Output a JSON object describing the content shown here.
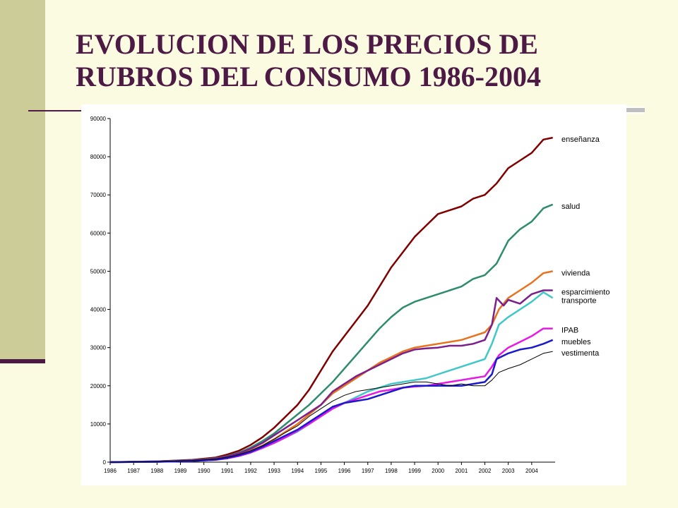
{
  "slide": {
    "title_line1": "EVOLUCION DE LOS PRECIOS DE",
    "title_line2": "RUBROS DEL CONSUMO 1986-2004",
    "accent_color": "#4D1A45",
    "sidebar_color": "#CCCC99",
    "background_color": "#FBFBE1"
  },
  "chart_data": {
    "type": "line",
    "title": "",
    "xlabel": "",
    "ylabel": "",
    "xlim": [
      1986,
      2005
    ],
    "ylim": [
      0,
      90000
    ],
    "y_ticks": [
      "0",
      "10000",
      "20000",
      "30000",
      "40000",
      "50000",
      "60000",
      "70000",
      "80000",
      "90000"
    ],
    "x_ticks": [
      "1986",
      "1987",
      "1988",
      "1989",
      "1990",
      "1991",
      "1992",
      "1993",
      "1994",
      "1995",
      "1996",
      "1997",
      "1998",
      "1999",
      "2000",
      "2001",
      "2002",
      "2003",
      "2004"
    ],
    "grid": false,
    "legend": "right (labels at line ends)",
    "series": [
      {
        "name": "enseñanza",
        "color": "#800000",
        "stroke": 2.5,
        "points": [
          [
            1986,
            0
          ],
          [
            1988,
            200
          ],
          [
            1989.5,
            600
          ],
          [
            1990.5,
            1200
          ],
          [
            1991,
            2000
          ],
          [
            1991.5,
            3000
          ],
          [
            1992,
            4500
          ],
          [
            1992.5,
            6500
          ],
          [
            1993,
            9000
          ],
          [
            1993.5,
            12000
          ],
          [
            1994,
            15000
          ],
          [
            1994.5,
            19000
          ],
          [
            1995,
            24000
          ],
          [
            1995.5,
            29000
          ],
          [
            1996,
            33000
          ],
          [
            1996.5,
            37000
          ],
          [
            1997,
            41000
          ],
          [
            1997.5,
            46000
          ],
          [
            1998,
            51000
          ],
          [
            1998.5,
            55000
          ],
          [
            1999,
            59000
          ],
          [
            1999.5,
            62000
          ],
          [
            2000,
            65000
          ],
          [
            2000.5,
            66000
          ],
          [
            2001,
            67000
          ],
          [
            2001.5,
            69000
          ],
          [
            2002,
            70000
          ],
          [
            2002.5,
            73000
          ],
          [
            2003,
            77000
          ],
          [
            2003.5,
            79000
          ],
          [
            2004,
            81000
          ],
          [
            2004.5,
            84500
          ],
          [
            2004.9,
            85000
          ]
        ]
      },
      {
        "name": "salud",
        "color": "#2E8B6E",
        "stroke": 2.5,
        "points": [
          [
            1986,
            0
          ],
          [
            1988,
            200
          ],
          [
            1989.5,
            500
          ],
          [
            1990.5,
            1000
          ],
          [
            1991,
            1600
          ],
          [
            1991.5,
            2500
          ],
          [
            1992,
            3800
          ],
          [
            1992.5,
            5500
          ],
          [
            1993,
            7500
          ],
          [
            1993.5,
            10000
          ],
          [
            1994,
            12500
          ],
          [
            1994.5,
            15000
          ],
          [
            1995,
            18000
          ],
          [
            1995.5,
            21000
          ],
          [
            1996,
            24500
          ],
          [
            1996.5,
            28000
          ],
          [
            1997,
            31500
          ],
          [
            1997.5,
            35000
          ],
          [
            1998,
            38000
          ],
          [
            1998.5,
            40500
          ],
          [
            1999,
            42000
          ],
          [
            1999.5,
            43000
          ],
          [
            2000,
            44000
          ],
          [
            2000.5,
            45000
          ],
          [
            2001,
            46000
          ],
          [
            2001.5,
            48000
          ],
          [
            2002,
            49000
          ],
          [
            2002.5,
            52000
          ],
          [
            2003,
            58000
          ],
          [
            2003.5,
            61000
          ],
          [
            2004,
            63000
          ],
          [
            2004.5,
            66500
          ],
          [
            2004.9,
            67500
          ]
        ]
      },
      {
        "name": "vivienda",
        "color": "#E8731E",
        "stroke": 2.5,
        "points": [
          [
            1986,
            0
          ],
          [
            1988,
            150
          ],
          [
            1989.5,
            400
          ],
          [
            1990.5,
            800
          ],
          [
            1991,
            1300
          ],
          [
            1991.5,
            2000
          ],
          [
            1992,
            3000
          ],
          [
            1992.5,
            4300
          ],
          [
            1993,
            6000
          ],
          [
            1993.5,
            8000
          ],
          [
            1994,
            10000
          ],
          [
            1994.5,
            12500
          ],
          [
            1995,
            15000
          ],
          [
            1995.5,
            18000
          ],
          [
            1996,
            20000
          ],
          [
            1996.5,
            22000
          ],
          [
            1997,
            24000
          ],
          [
            1997.5,
            26000
          ],
          [
            1998,
            27500
          ],
          [
            1998.5,
            29000
          ],
          [
            1999,
            30000
          ],
          [
            1999.5,
            30500
          ],
          [
            2000,
            31000
          ],
          [
            2000.5,
            31500
          ],
          [
            2001,
            32000
          ],
          [
            2001.5,
            33000
          ],
          [
            2002,
            34000
          ],
          [
            2002.3,
            36000
          ],
          [
            2002.6,
            40000
          ],
          [
            2003,
            43000
          ],
          [
            2003.5,
            45000
          ],
          [
            2004,
            47000
          ],
          [
            2004.5,
            49500
          ],
          [
            2004.9,
            50000
          ]
        ]
      },
      {
        "name": "esparcimiento",
        "color": "#7B1F8A",
        "stroke": 2.5,
        "points": [
          [
            1986,
            0
          ],
          [
            1988,
            150
          ],
          [
            1989.5,
            450
          ],
          [
            1990.5,
            900
          ],
          [
            1991,
            1500
          ],
          [
            1991.5,
            2300
          ],
          [
            1992,
            3500
          ],
          [
            1992.5,
            5000
          ],
          [
            1993,
            7000
          ],
          [
            1993.5,
            9000
          ],
          [
            1994,
            11000
          ],
          [
            1994.5,
            13000
          ],
          [
            1995,
            15000
          ],
          [
            1995.5,
            18500
          ],
          [
            1996,
            20500
          ],
          [
            1996.5,
            22500
          ],
          [
            1997,
            24000
          ],
          [
            1997.5,
            25500
          ],
          [
            1998,
            27000
          ],
          [
            1998.5,
            28500
          ],
          [
            1999,
            29500
          ],
          [
            1999.5,
            29800
          ],
          [
            2000,
            30000
          ],
          [
            2000.5,
            30500
          ],
          [
            2001,
            30500
          ],
          [
            2001.5,
            31000
          ],
          [
            2002,
            32000
          ],
          [
            2002.3,
            36000
          ],
          [
            2002.5,
            43000
          ],
          [
            2002.8,
            41000
          ],
          [
            2003,
            42500
          ],
          [
            2003.5,
            41500
          ],
          [
            2004,
            44000
          ],
          [
            2004.5,
            45000
          ],
          [
            2004.9,
            45000
          ]
        ]
      },
      {
        "name": "transporte",
        "color": "#40C8C8",
        "stroke": 2.5,
        "points": [
          [
            1986,
            0
          ],
          [
            1988,
            100
          ],
          [
            1989.5,
            300
          ],
          [
            1990.5,
            600
          ],
          [
            1991,
            1000
          ],
          [
            1991.5,
            1600
          ],
          [
            1992,
            2500
          ],
          [
            1992.5,
            3700
          ],
          [
            1993,
            5000
          ],
          [
            1993.5,
            6500
          ],
          [
            1994,
            8000
          ],
          [
            1994.5,
            10000
          ],
          [
            1995,
            12000
          ],
          [
            1995.5,
            14000
          ],
          [
            1996,
            15500
          ],
          [
            1996.5,
            17000
          ],
          [
            1997,
            18500
          ],
          [
            1997.5,
            19500
          ],
          [
            1998,
            20500
          ],
          [
            1998.5,
            21000
          ],
          [
            1999,
            21500
          ],
          [
            1999.5,
            22000
          ],
          [
            2000,
            23000
          ],
          [
            2000.5,
            24000
          ],
          [
            2001,
            25000
          ],
          [
            2001.5,
            26000
          ],
          [
            2002,
            27000
          ],
          [
            2002.3,
            31000
          ],
          [
            2002.6,
            36000
          ],
          [
            2003,
            38000
          ],
          [
            2003.5,
            40000
          ],
          [
            2004,
            42000
          ],
          [
            2004.5,
            44500
          ],
          [
            2004.9,
            43000
          ]
        ]
      },
      {
        "name": "IPAB",
        "color": "#E619E6",
        "stroke": 2.5,
        "points": [
          [
            1986,
            0
          ],
          [
            1988,
            100
          ],
          [
            1989.5,
            300
          ],
          [
            1990.5,
            600
          ],
          [
            1991,
            1000
          ],
          [
            1991.5,
            1600
          ],
          [
            1992,
            2500
          ],
          [
            1992.5,
            3700
          ],
          [
            1993,
            5000
          ],
          [
            1993.5,
            6500
          ],
          [
            1994,
            8200
          ],
          [
            1994.5,
            10000
          ],
          [
            1995,
            12000
          ],
          [
            1995.5,
            14000
          ],
          [
            1996,
            15500
          ],
          [
            1996.5,
            16500
          ],
          [
            1997,
            17500
          ],
          [
            1997.5,
            18500
          ],
          [
            1998,
            19000
          ],
          [
            1998.5,
            19500
          ],
          [
            1999,
            19800
          ],
          [
            1999.5,
            20000
          ],
          [
            2000,
            20500
          ],
          [
            2000.5,
            21000
          ],
          [
            2001,
            21500
          ],
          [
            2001.5,
            22000
          ],
          [
            2002,
            22500
          ],
          [
            2002.3,
            25000
          ],
          [
            2002.6,
            28000
          ],
          [
            2003,
            30000
          ],
          [
            2003.5,
            31500
          ],
          [
            2004,
            33000
          ],
          [
            2004.5,
            35000
          ],
          [
            2004.9,
            35000
          ]
        ]
      },
      {
        "name": "muebles",
        "color": "#1A1ACC",
        "stroke": 2.5,
        "points": [
          [
            1986,
            0
          ],
          [
            1988,
            100
          ],
          [
            1989.5,
            300
          ],
          [
            1990.5,
            650
          ],
          [
            1991,
            1100
          ],
          [
            1991.5,
            1800
          ],
          [
            1992,
            2700
          ],
          [
            1992.5,
            4000
          ],
          [
            1993,
            5500
          ],
          [
            1993.5,
            7000
          ],
          [
            1994,
            8500
          ],
          [
            1994.5,
            10500
          ],
          [
            1995,
            12500
          ],
          [
            1995.5,
            14500
          ],
          [
            1996,
            15500
          ],
          [
            1996.5,
            16000
          ],
          [
            1997,
            16500
          ],
          [
            1997.5,
            17500
          ],
          [
            1998,
            18500
          ],
          [
            1998.5,
            19500
          ],
          [
            1999,
            20000
          ],
          [
            1999.5,
            20000
          ],
          [
            2000,
            20000
          ],
          [
            2000.5,
            20000
          ],
          [
            2001,
            20000
          ],
          [
            2001.5,
            20500
          ],
          [
            2002,
            21000
          ],
          [
            2002.3,
            23000
          ],
          [
            2002.5,
            27000
          ],
          [
            2003,
            28500
          ],
          [
            2003.5,
            29500
          ],
          [
            2004,
            30000
          ],
          [
            2004.5,
            31000
          ],
          [
            2004.9,
            32000
          ]
        ]
      },
      {
        "name": "vestimenta",
        "color": "#000000",
        "stroke": 1,
        "points": [
          [
            1986,
            0
          ],
          [
            1988,
            150
          ],
          [
            1989.5,
            400
          ],
          [
            1990.5,
            800
          ],
          [
            1991,
            1300
          ],
          [
            1991.5,
            2000
          ],
          [
            1992,
            3000
          ],
          [
            1992.5,
            4300
          ],
          [
            1993,
            6000
          ],
          [
            1993.5,
            7800
          ],
          [
            1994,
            9500
          ],
          [
            1994.5,
            12000
          ],
          [
            1995,
            14000
          ],
          [
            1995.5,
            16000
          ],
          [
            1996,
            17500
          ],
          [
            1996.5,
            18500
          ],
          [
            1997,
            19000
          ],
          [
            1997.5,
            19500
          ],
          [
            1998,
            20000
          ],
          [
            1998.5,
            20500
          ],
          [
            1999,
            21000
          ],
          [
            1999.5,
            21000
          ],
          [
            2000,
            20500
          ],
          [
            2000.5,
            20000
          ],
          [
            2001,
            20500
          ],
          [
            2001.5,
            20000
          ],
          [
            2002,
            20000
          ],
          [
            2002.3,
            21500
          ],
          [
            2002.6,
            23500
          ],
          [
            2003,
            24500
          ],
          [
            2003.5,
            25500
          ],
          [
            2004,
            27000
          ],
          [
            2004.5,
            28500
          ],
          [
            2004.9,
            29000
          ]
        ]
      }
    ]
  }
}
